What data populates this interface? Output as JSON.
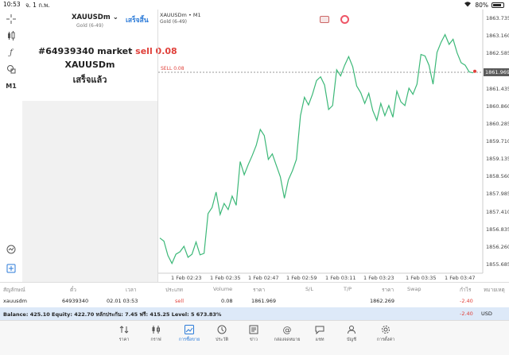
{
  "status": {
    "time": "10:53",
    "date": "จ. 1 ก.พ.",
    "battery": "80%"
  },
  "panel": {
    "symbol": "XAUUSDm",
    "subtitle": "Gold (6-49)",
    "done": "เสร็จสิ้น",
    "order_ticket": "#64939340 market",
    "order_side": "sell 0.08",
    "order_symbol": "XAUUSDm",
    "order_status": "เสร็จแล้ว"
  },
  "left_toolbar": {
    "timeframe": "M1"
  },
  "chart": {
    "title": "XAUUSDm • M1",
    "subtitle": "Gold (6-49)",
    "sell_level_label": "SELL 0.08",
    "price_badge": "1861.969",
    "colors": {
      "line": "#3cb878",
      "sell_level": "#e0403a"
    }
  },
  "chart_data": {
    "type": "line",
    "series": [
      {
        "values": [
          1856.55,
          1856.45,
          1855.98,
          1855.72,
          1856.02,
          1856.1,
          1856.28,
          1855.92,
          1856.02,
          1856.42,
          1856.0,
          1856.05,
          1857.35,
          1857.55,
          1858.05,
          1857.32,
          1857.68,
          1857.48,
          1857.92,
          1857.62,
          1859.05,
          1858.62,
          1858.95,
          1859.25,
          1859.58,
          1860.1,
          1859.9,
          1859.12,
          1859.3,
          1858.92,
          1858.55,
          1857.85,
          1858.45,
          1858.75,
          1859.12,
          1860.55,
          1861.15,
          1860.9,
          1861.25,
          1861.7,
          1861.82,
          1861.55,
          1860.75,
          1860.88,
          1862.05,
          1861.85,
          1862.2,
          1862.48,
          1862.15,
          1861.52,
          1861.3,
          1860.95,
          1861.28,
          1860.72,
          1860.4,
          1860.95,
          1860.55,
          1860.88,
          1860.5,
          1861.35,
          1861.0,
          1860.88,
          1861.45,
          1861.25,
          1861.58,
          1862.55,
          1862.5,
          1862.2,
          1861.58,
          1862.62,
          1862.95,
          1863.2,
          1862.88,
          1863.05,
          1862.6,
          1862.28,
          1862.2,
          1861.98,
          1861.95
        ]
      }
    ],
    "x_tick_labels": [
      "1 Feb 02:23",
      "1 Feb 02:35",
      "1 Feb 02:47",
      "1 Feb 02:59",
      "1 Feb 03:11",
      "1 Feb 03:23",
      "1 Feb 03:35",
      "1 Feb 03:47"
    ],
    "y_tick_labels": [
      "1863.735",
      "1863.160",
      "1862.585",
      "1862.010",
      "1861.435",
      "1860.860",
      "1860.285",
      "1859.710",
      "1859.135",
      "1858.560",
      "1857.985",
      "1857.410",
      "1856.835",
      "1856.260",
      "1855.685"
    ],
    "ylim": [
      1855.4,
      1864.02
    ],
    "sell_level": 1861.969,
    "grid": false
  },
  "table": {
    "headers": [
      "สัญลักษณ์",
      "ตั๋ว",
      "เวลา",
      "ประเภท",
      "Volume",
      "ราคา",
      "S/L",
      "T/P",
      "ราคา",
      "Swap",
      "กำไร",
      "หมายเหตุ"
    ],
    "row": [
      "xauusdm",
      "64939340",
      "02.01 03:53",
      "sell",
      "0.08",
      "1861.969",
      "",
      "",
      "1862.269",
      "",
      "-2.40",
      ""
    ]
  },
  "balance": {
    "text": "Balance: 425.10 Equity: 422.70 หลักประกัน: 7.45 ฟรี: 415.25 Level: 5 673.83%",
    "profit": "-2.40",
    "currency": "USD"
  },
  "nav": [
    "ราคา",
    "กราฟ",
    "การซื้อขาย",
    "ประวัติ",
    "ข่าว",
    "กล่องจดหมาย",
    "แชท",
    "บัญชี",
    "การตั้งค่า"
  ]
}
